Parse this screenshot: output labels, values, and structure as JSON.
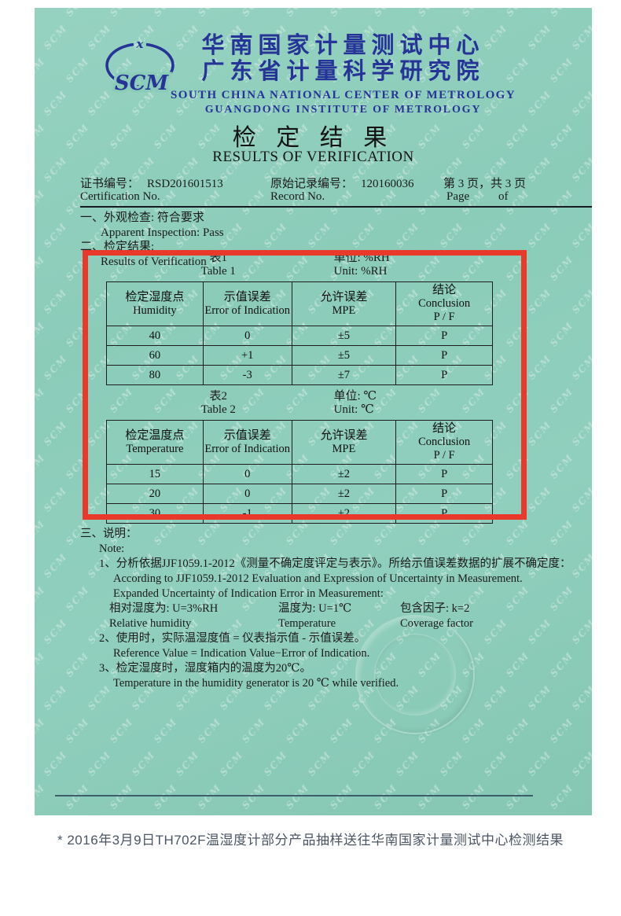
{
  "page": {
    "caption": "* 2016年3月9日TH702F温湿度计部分产品抽样送往华南国家计量测试中心检测结果"
  },
  "certificate": {
    "watermark_text": "SCM",
    "logo_text": "SCM",
    "logo_top_mark": "x",
    "org_cn_1": "华南国家计量测试中心",
    "org_cn_2": "广东省计量科学研究院",
    "org_en_1": "SOUTH CHINA NATIONAL CENTER OF METROLOGY",
    "org_en_2": "GUANGDONG INSTITUTE OF METROLOGY",
    "title_cn": "检 定 结 果",
    "title_en": "RESULTS OF VERIFICATION",
    "meta": {
      "cert_no_label_cn": "证书编号：",
      "cert_no_value": "RSD201601513",
      "record_no_label_cn": "原始记录编号：",
      "record_no_value": "120160036",
      "page_cn": "第 3 页，共 3 页",
      "cert_no_label_en": "Certification No.",
      "record_no_label_en": "Record No.",
      "page_en_1": "Page",
      "page_en_2": "of"
    },
    "sections": {
      "s1_cn": "一、外观检查: 符合要求",
      "s1_en": "Apparent Inspection: Pass",
      "s2_cn": "二、检定结果:",
      "s2_en": "Results of Verification"
    }
  },
  "table1": {
    "caption_cn": "表1",
    "caption_en": "Table 1",
    "unit_cn": "单位: %RH",
    "unit_en": "Unit: %RH",
    "col1_cn": "检定湿度点",
    "col1_en": "Humidity",
    "col2_cn": "示值误差",
    "col2_en": "Error of Indication",
    "col3_cn": "允许误差",
    "col3_en": "MPE",
    "col4_cn": "结论",
    "col4_en": "Conclusion",
    "col4_pf": "P / F",
    "rows": [
      [
        "40",
        "0",
        "±5",
        "P"
      ],
      [
        "60",
        "+1",
        "±5",
        "P"
      ],
      [
        "80",
        "-3",
        "±7",
        "P"
      ]
    ]
  },
  "table2": {
    "caption_cn": "表2",
    "caption_en": "Table 2",
    "unit_cn": "单位:  ℃",
    "unit_en": "Unit:  ℃",
    "col1_cn": "检定温度点",
    "col1_en": "Temperature",
    "col2_cn": "示值误差",
    "col2_en": "Error of Indication",
    "col3_cn": "允许误差",
    "col3_en": "MPE",
    "col4_cn": "结论",
    "col4_en": "Conclusion",
    "col4_pf": "P / F",
    "rows": [
      [
        "15",
        "0",
        "±2",
        "P"
      ],
      [
        "20",
        "0",
        "±2",
        "P"
      ],
      [
        "30",
        "-1",
        "±2",
        "P"
      ]
    ]
  },
  "notes": {
    "heading_cn": "三、说明：",
    "heading_en": "Note:",
    "n1_cn": "1、分析依据JJF1059.1-2012《测量不确定度评定与表示》。所给示值误差数据的扩展不确定度：",
    "n1_en1": "According to JJF1059.1-2012 Evaluation and Expression of Uncertainty in Measurement.",
    "n1_en2": "Expanded Uncertainty of Indication Error in Measurement:",
    "u_rh_cn": "相对湿度为: U=3%RH",
    "u_t_cn": "温度为: U=1℃",
    "k_cn": "包含因子: k=2",
    "u_rh_en": "Relative humidity",
    "u_t_en": "Temperature",
    "k_en": "Coverage factor",
    "n2_cn": "2、使用时，实际温湿度值 = 仪表指示值 - 示值误差。",
    "n2_en": "Reference Value = Indication Value−Error of Indication.",
    "n3_cn": "3、检定湿度时，湿度箱内的温度为20℃。",
    "n3_en": "Temperature in the humidity generator is 20 ℃ while verified."
  }
}
